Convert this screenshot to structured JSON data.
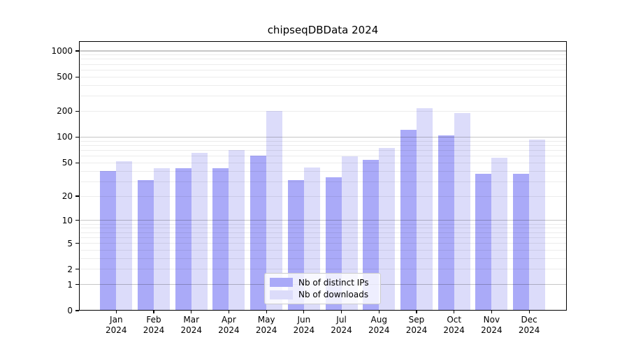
{
  "title": "chipseqDBData 2024",
  "chart_data": {
    "type": "bar",
    "title": "chipseqDBData 2024",
    "categories": [
      "Jan",
      "Feb",
      "Mar",
      "Apr",
      "May",
      "Jun",
      "Jul",
      "Aug",
      "Sep",
      "Oct",
      "Nov",
      "Dec"
    ],
    "category_year": "2024",
    "series": [
      {
        "name": "Nb of distinct IPs",
        "color": "#aaaaf8",
        "values": [
          40,
          31,
          43,
          43,
          61,
          31,
          34,
          54,
          122,
          104,
          37,
          37
        ]
      },
      {
        "name": "Nb of downloads",
        "color": "#dcdcfa",
        "values": [
          52,
          43,
          66,
          70,
          200,
          44,
          60,
          75,
          219,
          192,
          57,
          93
        ]
      }
    ],
    "y_axis": {
      "scale": "log10(1+x)",
      "ticks": [
        0,
        1,
        2,
        5,
        10,
        20,
        50,
        100,
        200,
        500,
        1000
      ],
      "top_value": 1200
    },
    "grid": {
      "minor_color": "#ececec",
      "major_color": "#c6c6c6",
      "major_at": [
        1,
        10,
        100,
        1000
      ]
    },
    "legend": {
      "position": "lower center"
    }
  }
}
